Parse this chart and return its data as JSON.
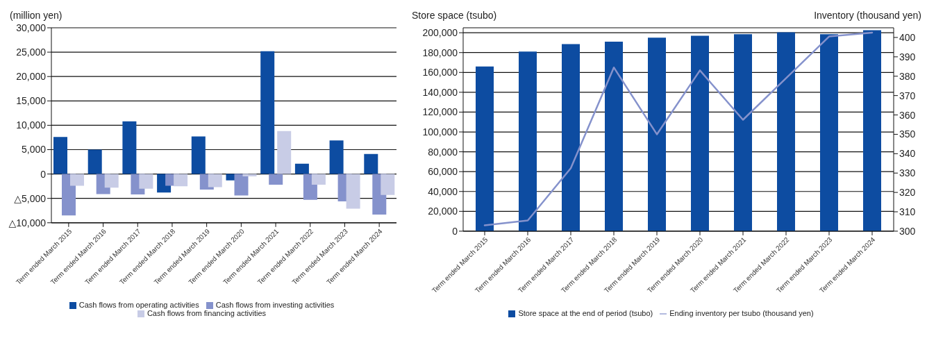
{
  "chart_data": [
    {
      "type": "bar",
      "ylabel": "(million yen)",
      "categories": [
        "Term ended March 2015",
        "Term ended March 2016",
        "Term ended March 2017",
        "Term ended March 2018",
        "Term ended March 2019",
        "Term ended March 2020",
        "Term ended March 2021",
        "Term ended March 2022",
        "Term ended March 2023",
        "Term ended March 2024"
      ],
      "series": [
        {
          "name": "Cash flows from operating activities",
          "color": "#0d4ca1",
          "values": [
            7600,
            5000,
            10800,
            -3800,
            7700,
            -1300,
            25200,
            2100,
            6900,
            4100
          ]
        },
        {
          "name": "Cash flows from investing activities",
          "color": "#8592cc",
          "values": [
            -8500,
            -4100,
            -4200,
            -2400,
            -3200,
            -4400,
            -2200,
            -5300,
            -5600,
            -8300
          ]
        },
        {
          "name": "Cash flows from financing activities",
          "color": "#c8cce6",
          "values": [
            -2400,
            -2800,
            -3000,
            -2500,
            -2700,
            -500,
            8800,
            -2200,
            -7100,
            -4300
          ]
        }
      ],
      "ylim": [
        -10000,
        30000
      ],
      "yticks": [
        {
          "value": -10000,
          "label": "△10,000"
        },
        {
          "value": -5000,
          "label": "△5,000"
        },
        0,
        {
          "value": 5000,
          "label": "5,000"
        },
        {
          "value": 10000,
          "label": "10,000"
        },
        {
          "value": 15000,
          "label": "15,000"
        },
        {
          "value": 20000,
          "label": "20,000"
        },
        {
          "value": 25000,
          "label": "25,000"
        },
        {
          "value": 30000,
          "label": "30,000"
        }
      ],
      "grid": "y",
      "legend": "bottom"
    },
    {
      "type": "bar",
      "ylabel": "Store space (tsubo)",
      "y2label": "Inventory (thousand yen)",
      "categories": [
        "Term ended March 2015",
        "Term ended March 2016",
        "Term ended March 2017",
        "Term ended March 2018",
        "Term ended March 2019",
        "Term ended March 2020",
        "Term ended March 2021",
        "Term ended March 2022",
        "Term ended March 2023",
        "Term ended March 2024"
      ],
      "series": [
        {
          "name": "Store space at the end of period (tsubo)",
          "color": "#0d4ca1",
          "values": [
            166000,
            181000,
            188500,
            191000,
            195000,
            197000,
            198500,
            200500,
            198500,
            202500
          ]
        },
        {
          "name": "Ending inventory per tsubo (thousand yen)",
          "type": "line",
          "axis": "y2",
          "color": "#8592cc",
          "values": [
            303,
            305.5,
            332.5,
            384.5,
            350,
            383,
            357.5,
            379,
            400.5,
            402.5
          ]
        }
      ],
      "ylim": [
        0,
        205000
      ],
      "yticks": [
        0,
        {
          "value": 20000,
          "label": "20,000"
        },
        {
          "value": 40000,
          "label": "40,000"
        },
        {
          "value": 60000,
          "label": "60,000"
        },
        {
          "value": 80000,
          "label": "80,000"
        },
        {
          "value": 100000,
          "label": "100,000"
        },
        {
          "value": 120000,
          "label": "120,000"
        },
        {
          "value": 140000,
          "label": "140,000"
        },
        {
          "value": 160000,
          "label": "160,000"
        },
        {
          "value": 180000,
          "label": "180,000"
        },
        {
          "value": 200000,
          "label": "200,000"
        }
      ],
      "y2lim": [
        300,
        405
      ],
      "y2ticks": [
        300,
        310,
        320,
        330,
        340,
        350,
        360,
        370,
        380,
        390,
        400
      ],
      "grid": "y",
      "legend": "bottom",
      "marker": "none",
      "line_style": "solid"
    }
  ]
}
